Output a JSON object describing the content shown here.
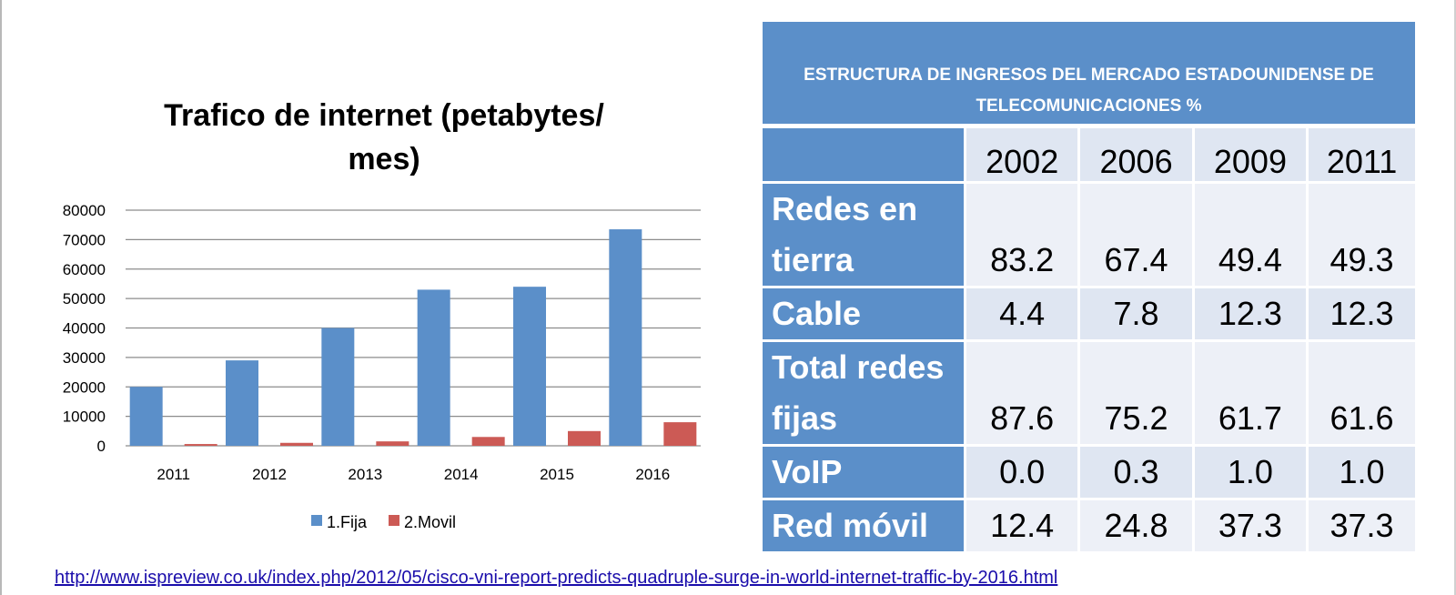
{
  "chart_data": {
    "type": "bar",
    "title": "Trafico de internet (petabytes/ mes)",
    "title_lines": [
      "Trafico de internet (petabytes/",
      "mes)"
    ],
    "categories": [
      "2011",
      "2012",
      "2013",
      "2014",
      "2015",
      "2016"
    ],
    "series": [
      {
        "name": "1.Fija",
        "values": [
          20000,
          29000,
          40000,
          53000,
          54000,
          73500
        ],
        "color": "#5b8fc9"
      },
      {
        "name": "2.Movil",
        "values": [
          600,
          1000,
          1500,
          3000,
          5000,
          8000
        ],
        "color": "#cc5a55"
      }
    ],
    "ylim": [
      0,
      80000
    ],
    "yticks": [
      "0",
      "10000",
      "20000",
      "30000",
      "40000",
      "50000",
      "60000",
      "70000",
      "80000"
    ],
    "grid": true,
    "legend": "bottom"
  },
  "table": {
    "title": "ESTRUCTURA DE INGRESOS DEL  MERCADO ESTADOUNIDENSE DE TELECOMUNICACIONES %",
    "years": [
      "2002",
      "2006",
      "2009",
      "2011"
    ],
    "rows": [
      {
        "label": "Redes en tierra",
        "values": [
          "83.2",
          "67.4",
          "49.4",
          "49.3"
        ]
      },
      {
        "label": "Cable",
        "values": [
          "4.4",
          "7.8",
          "12.3",
          "12.3"
        ]
      },
      {
        "label": "Total redes fijas",
        "values": [
          "87.6",
          "75.2",
          "61.7",
          "61.6"
        ]
      },
      {
        "label": "VoIP",
        "values": [
          "0.0",
          "0.3",
          "1.0",
          "1.0"
        ]
      },
      {
        "label": "Red móvil",
        "values": [
          "12.4",
          "24.8",
          "37.3",
          "37.3"
        ]
      }
    ]
  },
  "source_url": "http://www.ispreview.co.uk/index.php/2012/05/cisco-vni-report-predicts-quadruple-surge-in-world-internet-traffic-by-2016.html",
  "colors": {
    "accent_blue": "#5b8fc9",
    "accent_red": "#cc5a55",
    "cell_light": "#edf0f7",
    "cell_mid": "#dfe6f2"
  }
}
